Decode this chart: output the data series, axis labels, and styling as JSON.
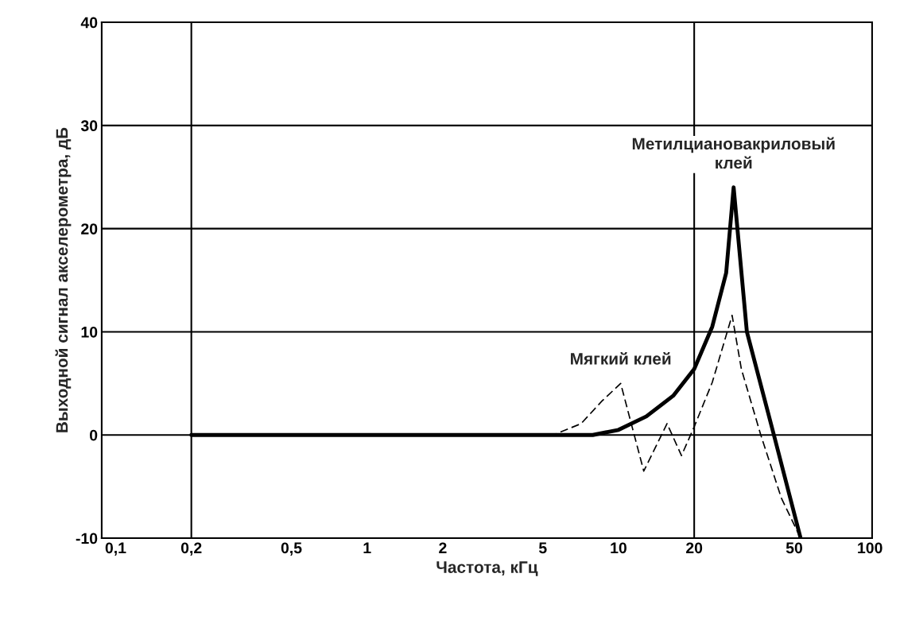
{
  "chart_data": {
    "type": "line",
    "xlabel": "Частота, кГц",
    "ylabel": "Выходной сигнал акселерометра, дБ",
    "log": "x",
    "xlim": [
      0.088,
      102
    ],
    "ylim": [
      -10,
      40
    ],
    "xticks": [
      {
        "value": 0.1,
        "label": "0,1"
      },
      {
        "value": 0.2,
        "label": "0,2"
      },
      {
        "value": 0.5,
        "label": "0,5"
      },
      1,
      2,
      5,
      10,
      20,
      50,
      100
    ],
    "yticks": [
      -10,
      0,
      10,
      20,
      30,
      40
    ],
    "grid": "y",
    "legend": false,
    "ref_lines": [
      {
        "axis": "x",
        "value": 0.2,
        "color": "#000000"
      },
      {
        "axis": "x",
        "value": 20,
        "color": "#000000"
      }
    ],
    "series": [
      {
        "name": "Метилциановакриловый\nклей",
        "color": "#000000",
        "line_style": "solid",
        "x": [
          0.2,
          7.9,
          10.0,
          12.9,
          16.5,
          20,
          23.6,
          26.8,
          28.7,
          32.4,
          41.5,
          53
        ],
        "values": [
          0,
          0,
          0.5,
          1.8,
          3.8,
          6.4,
          10.5,
          15.7,
          24,
          10,
          0,
          -10
        ]
      },
      {
        "name": "Мягкий клей",
        "color": "#000000",
        "line_style": "dashed",
        "x": [
          0.2,
          5.5,
          7.1,
          8.6,
          10.2,
          12.6,
          15.6,
          17.8,
          20,
          23.6,
          28.3,
          30.8,
          36.8,
          44.4,
          53
        ],
        "values": [
          0,
          0,
          1.1,
          3.3,
          5,
          -3.5,
          1.1,
          -2,
          0.8,
          5.1,
          11.6,
          6.4,
          0,
          -6.1,
          -10
        ]
      }
    ]
  }
}
